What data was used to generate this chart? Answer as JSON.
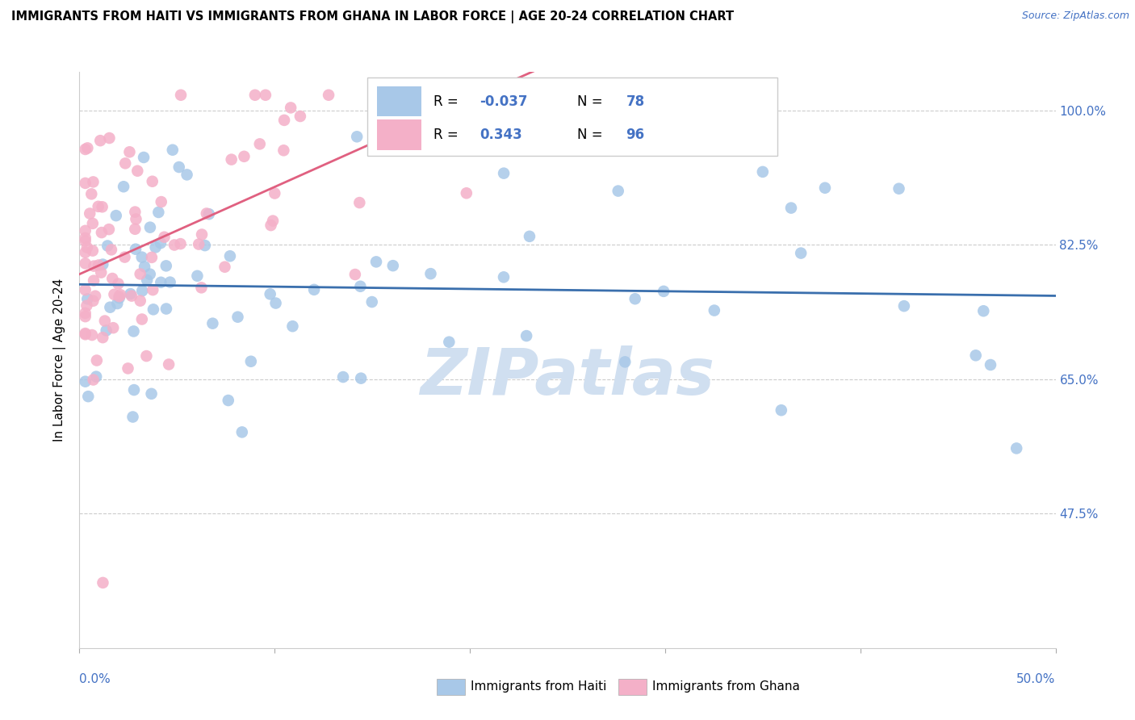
{
  "title": "IMMIGRANTS FROM HAITI VS IMMIGRANTS FROM GHANA IN LABOR FORCE | AGE 20-24 CORRELATION CHART",
  "source": "Source: ZipAtlas.com",
  "ylabel_label": "In Labor Force | Age 20-24",
  "legend_haiti": "Immigrants from Haiti",
  "legend_ghana": "Immigrants from Ghana",
  "R_haiti": -0.037,
  "N_haiti": 78,
  "R_ghana": 0.343,
  "N_ghana": 96,
  "color_haiti": "#a8c8e8",
  "color_ghana": "#f4b0c8",
  "color_haiti_line": "#3a6fad",
  "color_ghana_line": "#e06080",
  "color_text_blue": "#4472c4",
  "color_text_pink": "#d05878",
  "watermark_color": "#d0dff0",
  "xlim": [
    0.0,
    0.5
  ],
  "ylim": [
    0.3,
    1.05
  ],
  "y_ticks": [
    0.475,
    0.65,
    0.825,
    1.0
  ],
  "y_tick_labels": [
    "47.5%",
    "65.0%",
    "82.5%",
    "100.0%"
  ]
}
